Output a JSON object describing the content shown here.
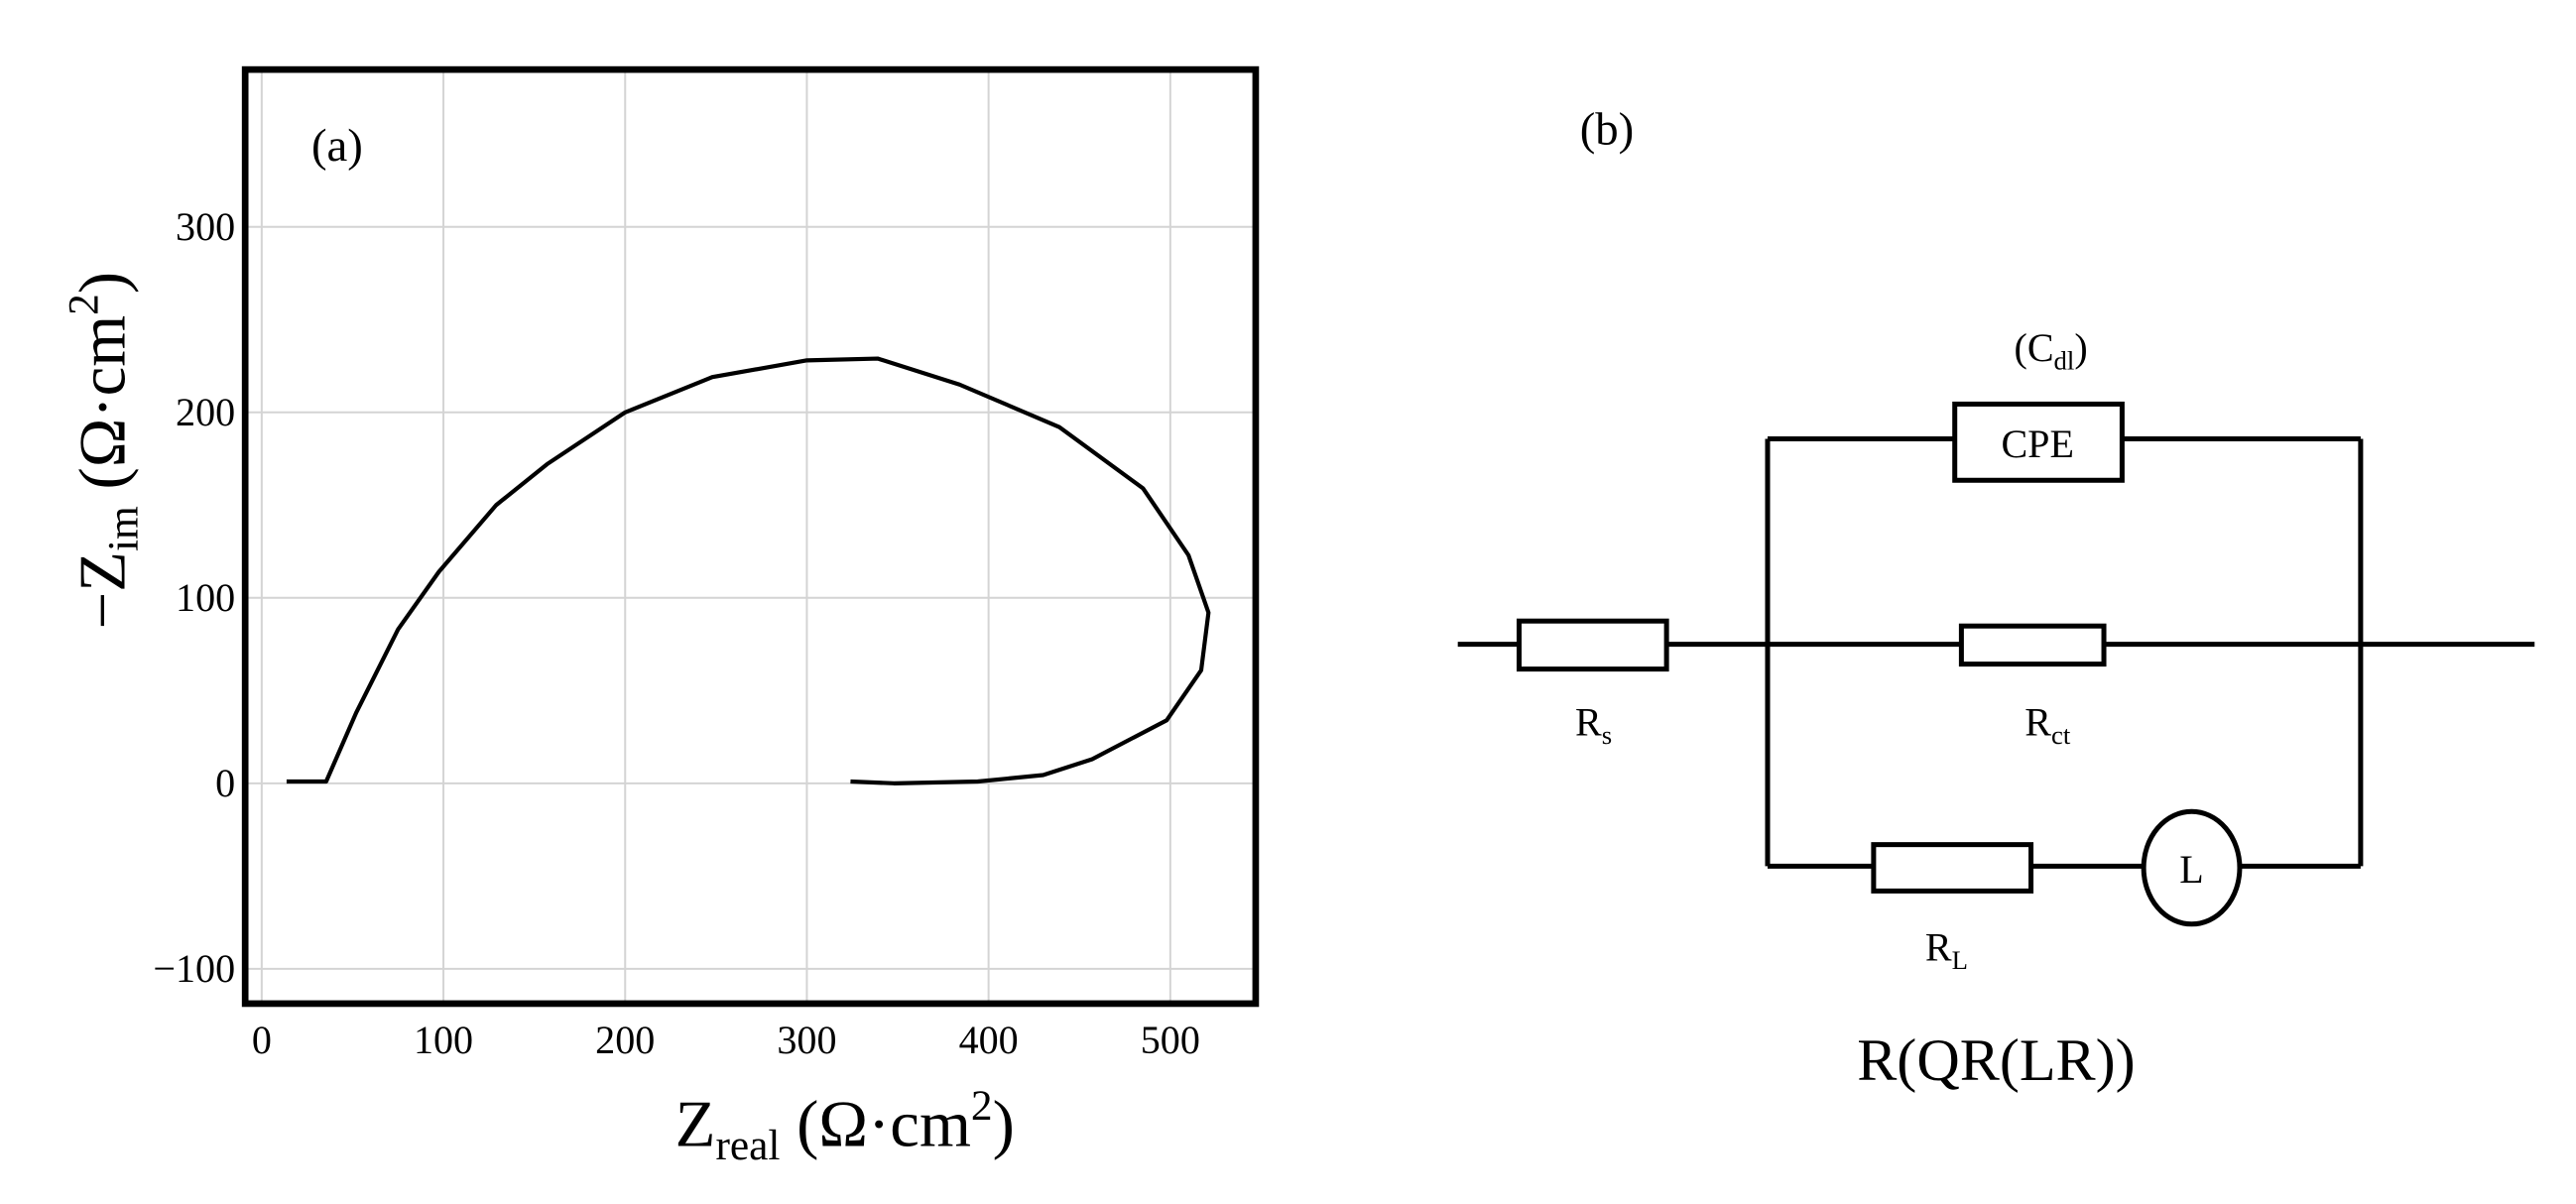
{
  "chart_data": {
    "type": "line",
    "annotation": "(a)",
    "xlabel": {
      "main": "Z",
      "subscript": "real",
      "unit": " (Ω·cm",
      "superscript": "2",
      "close": ")"
    },
    "ylabel": {
      "main": "−Z",
      "subscript": "im",
      "unit": " (Ω·cm",
      "superscript": "2",
      "close": ")"
    },
    "x": [
      13.7,
      35.5,
      52,
      75,
      97.5,
      129,
      157,
      200,
      248,
      300,
      339,
      384,
      439,
      485,
      510,
      521,
      517,
      498,
      457,
      430,
      394,
      348,
      324
    ],
    "values": [
      1,
      1,
      38,
      83,
      114,
      150,
      172,
      200,
      219,
      228,
      229,
      215,
      192,
      159,
      123,
      92,
      61,
      34,
      13,
      4.5,
      1,
      0,
      1
    ],
    "color": "#000000",
    "xlim": [
      -9.1,
      547
    ],
    "ylim": [
      -118.75,
      384.8
    ],
    "xticks": [
      0,
      100,
      200,
      300,
      400,
      500
    ],
    "yticks": [
      {
        "value": -100,
        "label": "−100"
      },
      0,
      100,
      200,
      300
    ],
    "grid": true
  },
  "circuit": {
    "panel_label": "(b)",
    "cdl": {
      "open": "(C",
      "subscript": "dl",
      "close": ")"
    },
    "cpe": "CPE",
    "rs": {
      "symbol": "R",
      "subscript": "s"
    },
    "rct": {
      "symbol": "R",
      "subscript": "ct"
    },
    "rl": {
      "symbol": "R",
      "subscript": "L"
    },
    "inductor": "L",
    "formula": "R(QR(LR))"
  }
}
